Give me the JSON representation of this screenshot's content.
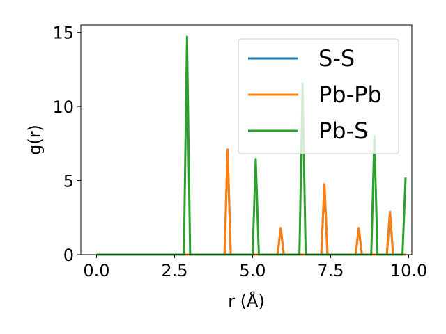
{
  "chart_data": {
    "type": "line",
    "title": "",
    "xlabel": "r (Å)",
    "ylabel": "g(r)",
    "xlim": [
      -0.5,
      10.1
    ],
    "ylim": [
      0,
      15.5
    ],
    "xticks": [
      0.0,
      2.5,
      5.0,
      7.5,
      10.0
    ],
    "xtick_labels": [
      "0.0",
      "2.5",
      "5.0",
      "7.5",
      "10.0"
    ],
    "yticks": [
      0,
      5,
      10,
      15
    ],
    "ytick_labels": [
      "0",
      "5",
      "10",
      "15"
    ],
    "grid": false,
    "legend_position": "top-right",
    "series": [
      {
        "name": "S-S",
        "color": "#1f77b4",
        "x": [
          0.0,
          4.1,
          4.2,
          4.3,
          5.8,
          5.9,
          6.0,
          7.2,
          7.3,
          7.4,
          8.3,
          8.4,
          8.5,
          9.3,
          9.4,
          9.5,
          9.9
        ],
        "y": [
          0,
          0,
          7.1,
          0,
          0,
          1.8,
          0,
          0,
          4.75,
          0,
          0,
          1.8,
          0,
          0,
          2.9,
          0,
          0
        ]
      },
      {
        "name": "Pb-Pb",
        "color": "#ff7f0e",
        "x": [
          0.0,
          4.1,
          4.2,
          4.3,
          5.8,
          5.9,
          6.0,
          7.2,
          7.3,
          7.4,
          8.3,
          8.4,
          8.5,
          9.3,
          9.4,
          9.5,
          9.9
        ],
        "y": [
          0,
          0,
          7.1,
          0,
          0,
          1.8,
          0,
          0,
          4.75,
          0,
          0,
          1.8,
          0,
          0,
          2.9,
          0,
          0
        ]
      },
      {
        "name": "Pb-S",
        "color": "#2ca02c",
        "x": [
          0.0,
          2.8,
          2.9,
          3.0,
          5.0,
          5.1,
          5.2,
          6.5,
          6.6,
          6.7,
          8.8,
          8.9,
          9.0,
          9.8,
          9.9
        ],
        "y": [
          0,
          0,
          14.7,
          0,
          0,
          6.45,
          0,
          0,
          11.55,
          0,
          0,
          8.0,
          0,
          0,
          5.2
        ]
      }
    ]
  }
}
